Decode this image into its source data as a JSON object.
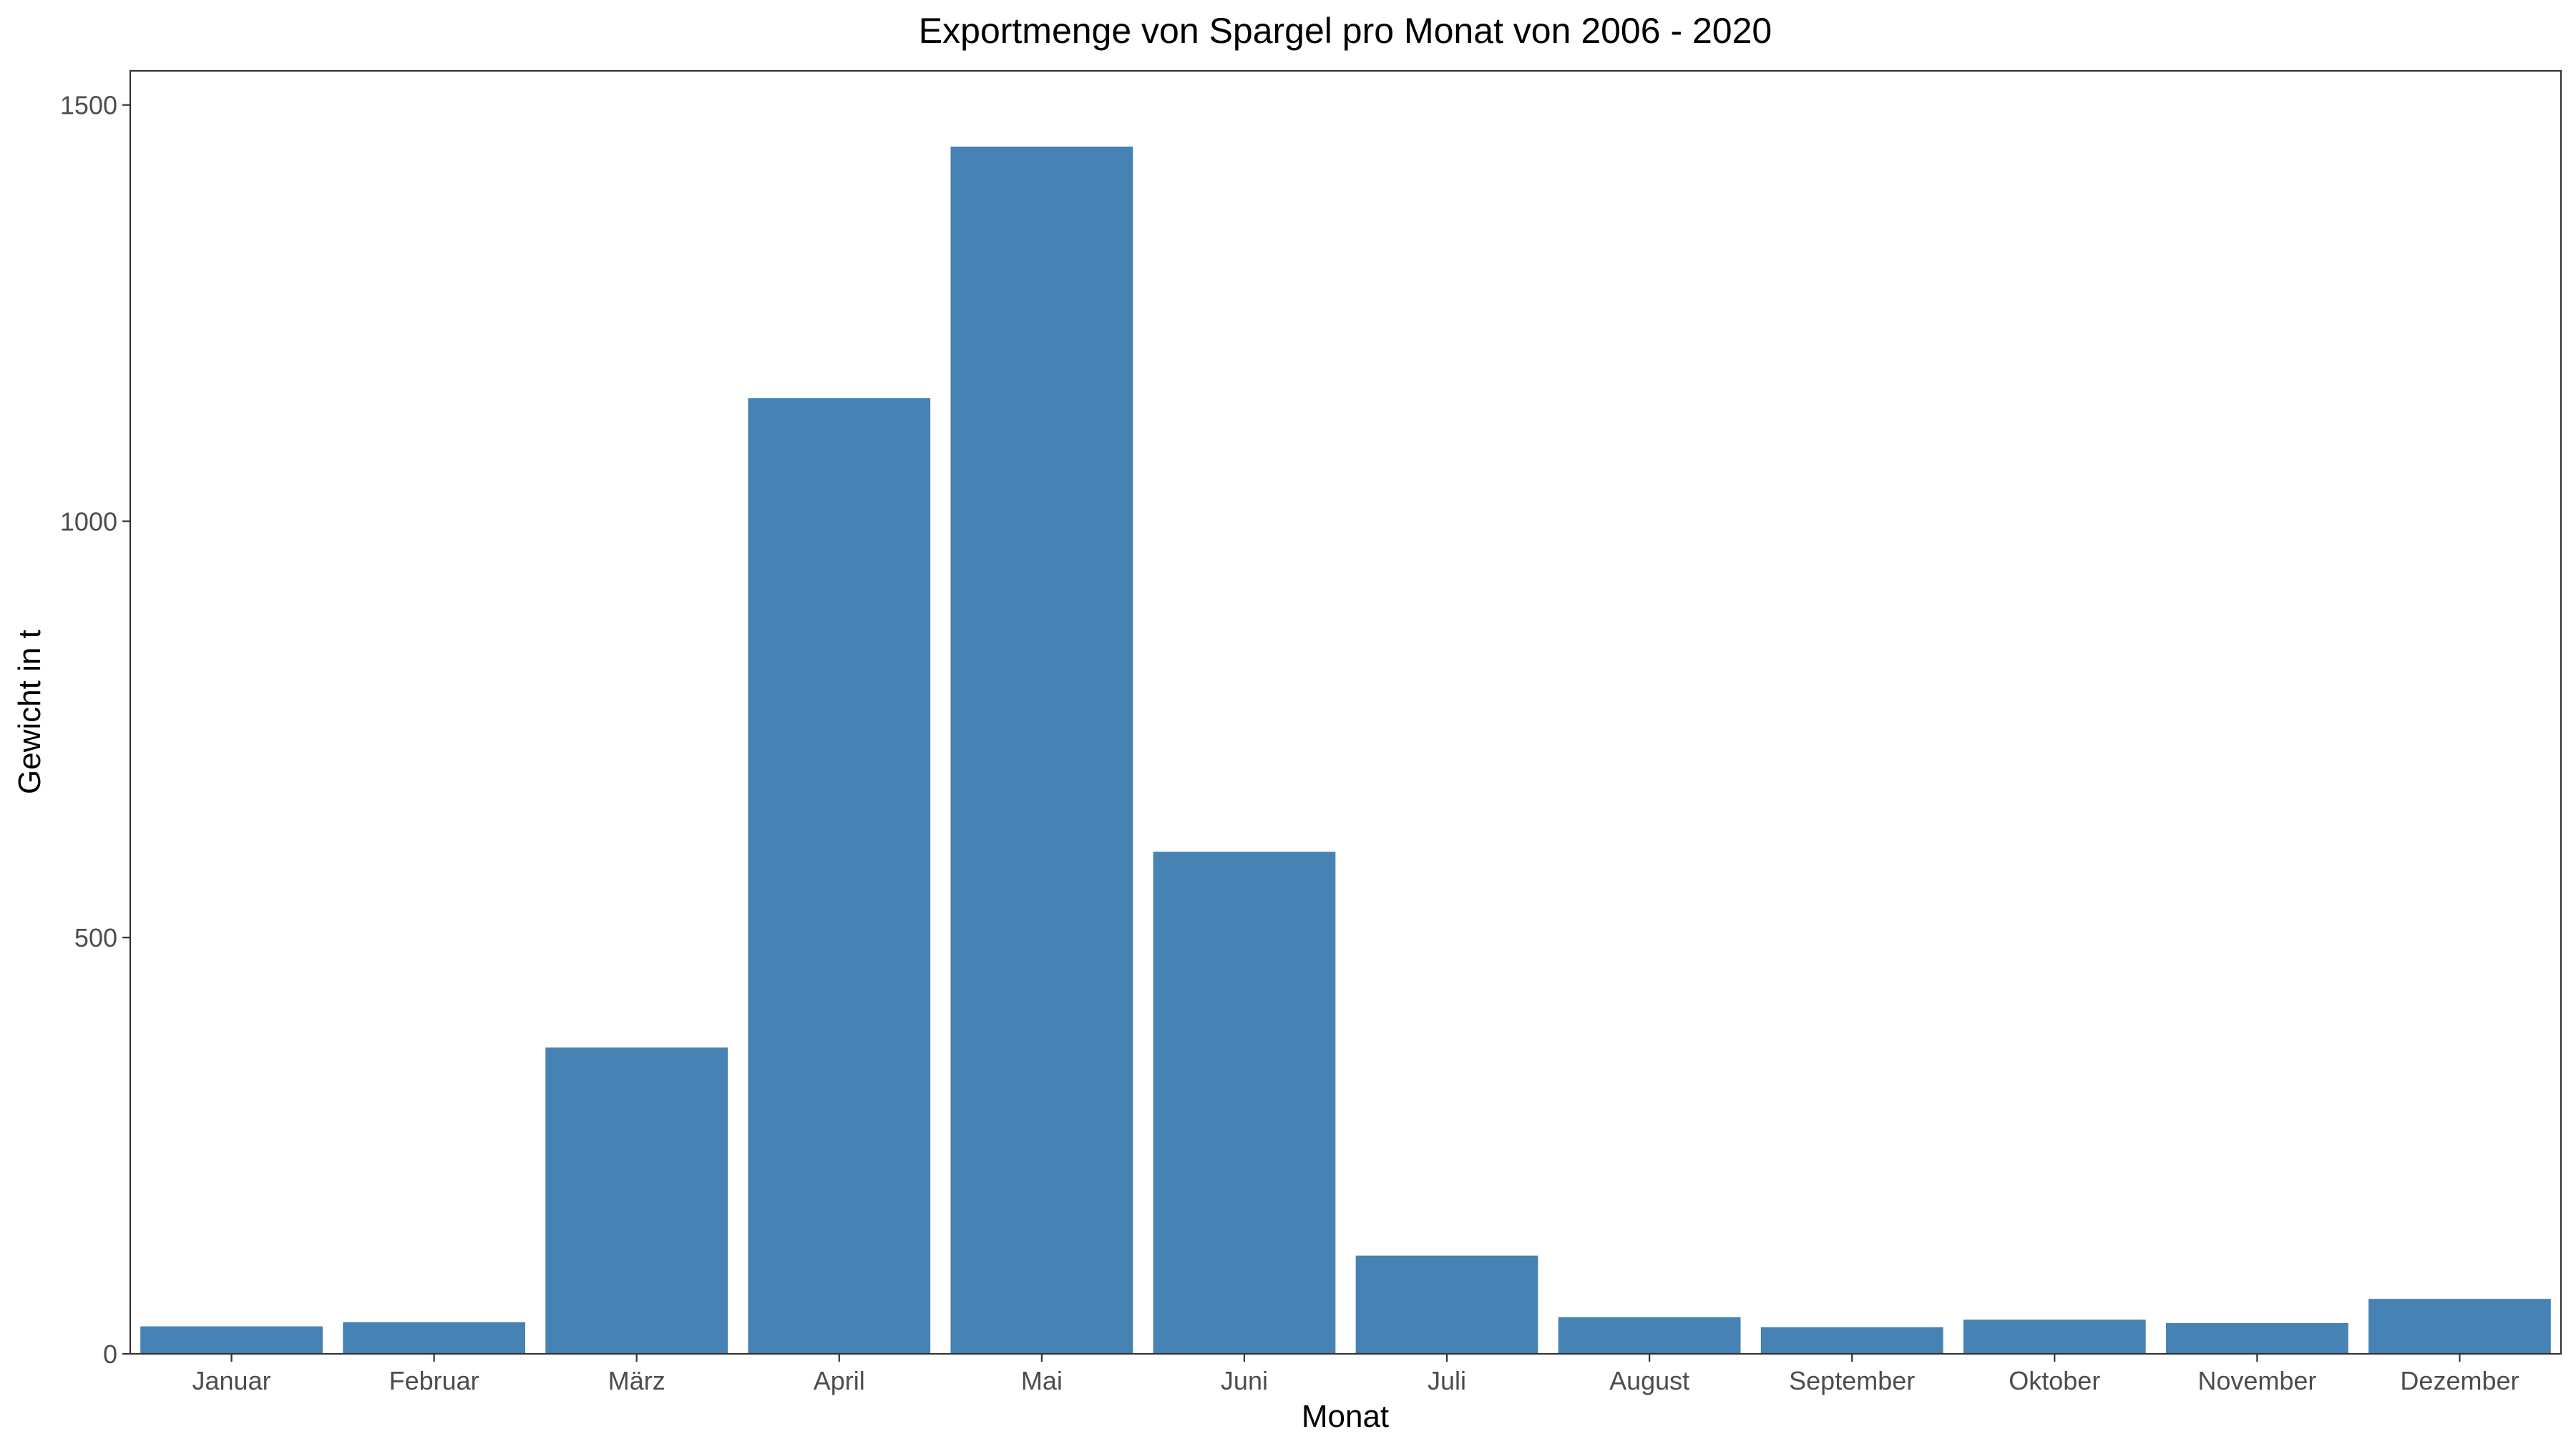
{
  "chart_data": {
    "type": "bar",
    "title": "Exportmenge von Spargel pro Monat von 2006 - 2020",
    "xlabel": "Monat",
    "ylabel": "Gewicht in t",
    "categories": [
      "Januar",
      "Februar",
      "März",
      "April",
      "Mai",
      "Juni",
      "Juli",
      "August",
      "September",
      "Oktober",
      "November",
      "Dezember"
    ],
    "values": [
      33,
      38,
      368,
      1148,
      1450,
      603,
      118,
      44,
      32,
      41,
      37,
      66
    ],
    "yticks": [
      0,
      500,
      1000,
      1500
    ],
    "ylim": [
      0,
      1500
    ],
    "grid": false,
    "legend": "none",
    "bar_color": "#4682B4"
  }
}
